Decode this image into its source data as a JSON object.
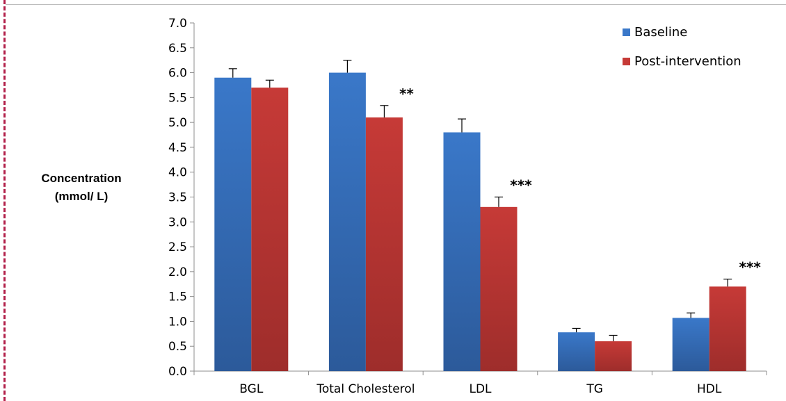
{
  "chart_data": {
    "type": "bar",
    "title": "",
    "xlabel": "",
    "ylabel_lines": [
      "Concentration",
      "(mmol/ L)"
    ],
    "categories": [
      "BGL",
      "Total Cholesterol",
      "LDL",
      "TG",
      "HDL"
    ],
    "series": [
      {
        "name": "Baseline",
        "color": "#3a78c9",
        "values": [
          5.9,
          6.0,
          4.8,
          0.78,
          1.07
        ],
        "errors": [
          0.18,
          0.25,
          0.27,
          0.08,
          0.1
        ]
      },
      {
        "name": "Post-intervention",
        "color": "#c63a37",
        "values": [
          5.7,
          5.1,
          3.3,
          0.6,
          1.7
        ],
        "errors": [
          0.15,
          0.24,
          0.2,
          0.12,
          0.15
        ]
      }
    ],
    "significance": [
      "",
      "**",
      "***",
      "",
      "***"
    ],
    "ylim": [
      0,
      7
    ],
    "yticks": [
      "0.0",
      "0.5",
      "1.0",
      "1.5",
      "2.0",
      "2.5",
      "3.0",
      "3.5",
      "4.0",
      "4.5",
      "5.0",
      "5.5",
      "6.0",
      "6.5",
      "7.0"
    ],
    "grid": false,
    "legend_position": "top-right"
  }
}
